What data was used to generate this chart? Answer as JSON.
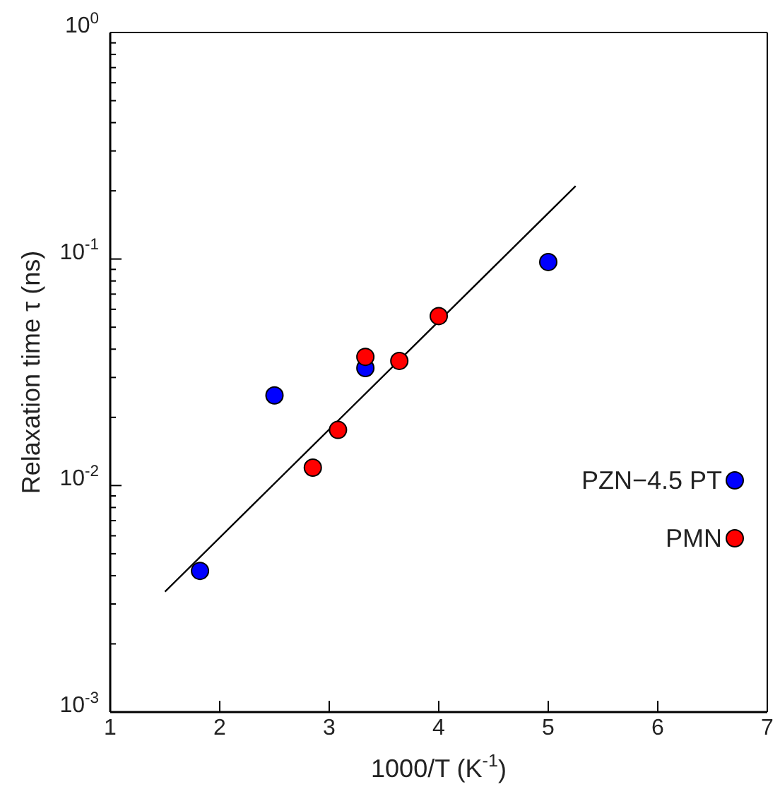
{
  "chart_data": {
    "type": "scatter",
    "xlabel": "1000/T (K$^{-1}$)",
    "ylabel": "Relaxation time  τ (ns)",
    "log": "y",
    "xlim": [
      1,
      7
    ],
    "xticks": [
      1,
      2,
      3,
      4,
      5,
      6,
      7
    ],
    "ylim": [
      0.001,
      1
    ],
    "yticks": [
      {
        "value": 0.001,
        "label": "10$^{-3}$"
      },
      {
        "value": 0.002,
        "label": null
      },
      {
        "value": 0.003,
        "label": null
      },
      {
        "value": 0.004,
        "label": null
      },
      {
        "value": 0.005,
        "label": null
      },
      {
        "value": 0.006,
        "label": null
      },
      {
        "value": 0.007,
        "label": null
      },
      {
        "value": 0.008,
        "label": null
      },
      {
        "value": 0.009,
        "label": null
      },
      {
        "value": 0.01,
        "label": "10$^{-2}$"
      },
      {
        "value": 0.02,
        "label": null
      },
      {
        "value": 0.03,
        "label": null
      },
      {
        "value": 0.04,
        "label": null
      },
      {
        "value": 0.05,
        "label": null
      },
      {
        "value": 0.06,
        "label": null
      },
      {
        "value": 0.07,
        "label": null
      },
      {
        "value": 0.08,
        "label": null
      },
      {
        "value": 0.09,
        "label": null
      },
      {
        "value": 0.1,
        "label": "10$^{-1}$"
      },
      {
        "value": 0.2,
        "label": null
      },
      {
        "value": 0.3,
        "label": null
      },
      {
        "value": 0.4,
        "label": null
      },
      {
        "value": 0.5,
        "label": null
      },
      {
        "value": 0.6,
        "label": null
      },
      {
        "value": 0.7,
        "label": null
      },
      {
        "value": 0.8,
        "label": null
      },
      {
        "value": 0.9,
        "label": null
      },
      {
        "value": 1,
        "label": "10$^{0}$"
      }
    ],
    "grid": false,
    "legend": "right",
    "marker": "circle",
    "series": [
      {
        "name": "PZN−4.5 PT",
        "color": "#0000ff",
        "x": [
          1.82,
          2.5,
          3.33,
          5.0
        ],
        "values": [
          0.0042,
          0.025,
          0.033,
          0.097
        ]
      },
      {
        "name": "PMN",
        "color": "#ff0000",
        "x": [
          2.85,
          3.08,
          3.33,
          3.64,
          4.0
        ],
        "values": [
          0.012,
          0.0176,
          0.037,
          0.0355,
          0.056
        ]
      },
      {
        "type": "line",
        "color": "#000000",
        "marker": "none",
        "line_style": "solid",
        "x": [
          1.5,
          5.25
        ],
        "values": [
          0.0034,
          0.21
        ]
      }
    ]
  }
}
